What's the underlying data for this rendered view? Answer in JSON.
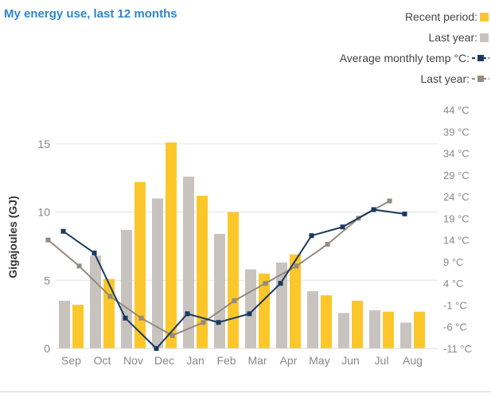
{
  "title": "My energy use, last 12 months",
  "legend": {
    "recent_label": "Recent period:",
    "last_year_label": "Last year:",
    "avg_temp_label": "Average monthly temp °C:",
    "last_year_temp_label": "Last year:"
  },
  "colors": {
    "title": "#2f86c9",
    "recent_bar": "#fcc72a",
    "last_year_bar": "#c8c3bf",
    "avg_temp_line": "#1b3960",
    "last_year_temp_line": "#958a7f",
    "text": "#444444",
    "axis_text": "#888888"
  },
  "chart_data": {
    "type": "bar",
    "categories": [
      "Sep",
      "Oct",
      "Nov",
      "Dec",
      "Jan",
      "Feb",
      "Mar",
      "Apr",
      "May",
      "Jun",
      "Jul",
      "Aug"
    ],
    "series": [
      {
        "name": "Last year",
        "values": [
          3.5,
          6.8,
          8.7,
          11.0,
          12.6,
          8.4,
          5.8,
          6.3,
          4.2,
          2.6,
          2.8,
          1.9
        ]
      },
      {
        "name": "Recent period",
        "values": [
          3.2,
          5.1,
          12.2,
          15.1,
          11.2,
          10.0,
          5.5,
          6.9,
          3.9,
          3.5,
          2.7,
          2.7
        ]
      }
    ],
    "temp_series": [
      {
        "name": "Average monthly temp °C",
        "values": [
          16,
          11,
          -4,
          -11,
          -3,
          -5,
          -3,
          4,
          15,
          17,
          21,
          20
        ]
      },
      {
        "name": "Last year",
        "values": [
          14,
          8,
          1,
          -4,
          -8,
          -5,
          0,
          4,
          8,
          13,
          19,
          23
        ]
      }
    ],
    "ylabel": "Gigajoules (GJ)",
    "ylim": [
      0,
      17.5
    ],
    "yticks": [
      0,
      5,
      10,
      15
    ],
    "y2lim": [
      -11,
      44
    ],
    "y2ticks": [
      "-11 °C",
      "-6 °C",
      "-1 °C",
      "4 °C",
      "9 °C",
      "14 °C",
      "19 °C",
      "24 °C",
      "29 °C",
      "34 °C",
      "39 °C",
      "44 °C"
    ],
    "grid": true
  }
}
